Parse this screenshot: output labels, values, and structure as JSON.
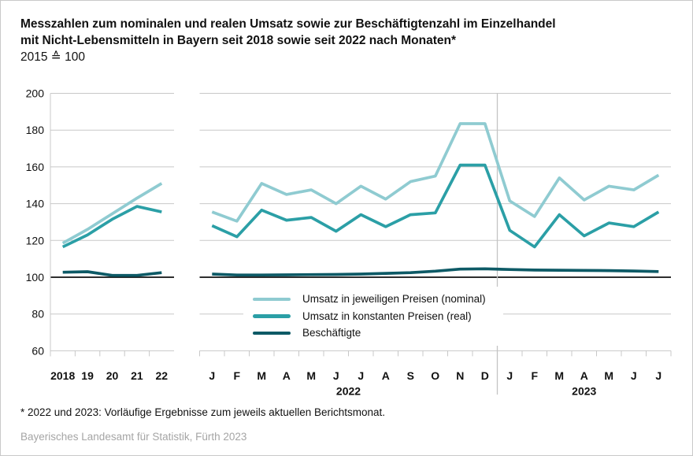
{
  "header": {
    "title_lines": [
      "Messzahlen zum nominalen und realen Umsatz sowie zur Beschäftigtenzahl im Einzelhandel",
      "mit Nicht-Lebensmitteln in Bayern seit 2018 sowie seit 2022 nach Monaten*"
    ],
    "subtitle": "2015 ≙ 100"
  },
  "chart_data": {
    "type": "line",
    "title": "Messzahlen zum nominalen und realen Umsatz sowie zur Beschäftigtenzahl im Einzelhandel mit Nicht-Lebensmitteln in Bayern seit 2018 sowie seit 2022 nach Monaten*",
    "unit": "2015 ≙ 100",
    "ylim": [
      60,
      200
    ],
    "yticks": [
      200,
      180,
      160,
      140,
      120,
      100,
      80,
      60
    ],
    "baseline": 100,
    "grid": true,
    "legend_position": "inside-bottom-center",
    "colors": {
      "nominal": "#8FCBD1",
      "real": "#2B9FA6",
      "beschaeftigte": "#0D5A66",
      "grid": "#C8C8C8",
      "baseline": "#111111",
      "separator": "#C4C4C4",
      "text": "#111111"
    },
    "panels": [
      {
        "id": "annual",
        "categories": [
          "2018",
          "19",
          "20",
          "21",
          "22"
        ],
        "series": [
          {
            "name": "Umsatz in jeweiligen Preisen (nominal)",
            "key": "nominal",
            "values": [
              118.5,
              126,
              134.5,
              143,
              151
            ]
          },
          {
            "name": "Umsatz in konstanten Preisen (real)",
            "key": "real",
            "values": [
              116.5,
              123,
              131.5,
              138.5,
              135.5
            ]
          },
          {
            "name": "Beschäftigte",
            "key": "beschaeftigte",
            "values": [
              102.7,
              103,
              101,
              101,
              102.5
            ]
          }
        ]
      },
      {
        "id": "monthly",
        "categories": [
          "J",
          "F",
          "M",
          "A",
          "M",
          "J",
          "J",
          "A",
          "S",
          "O",
          "N",
          "D",
          "J",
          "F",
          "M",
          "A",
          "M",
          "J",
          "J"
        ],
        "groups": [
          {
            "label": "2022",
            "from": 0,
            "to": 11
          },
          {
            "label": "2023",
            "from": 12,
            "to": 18
          }
        ],
        "series": [
          {
            "name": "Umsatz in jeweiligen Preisen (nominal)",
            "key": "nominal",
            "values": [
              135.5,
              130.5,
              151,
              145,
              147.5,
              140,
              149.5,
              142.5,
              152,
              155,
              183.5,
              183.5,
              141.5,
              133,
              154,
              142,
              149.5,
              147.5,
              155.5
            ]
          },
          {
            "name": "Umsatz in konstanten Preisen (real)",
            "key": "real",
            "values": [
              128,
              122,
              136.5,
              131,
              132.5,
              125,
              134,
              127.5,
              134,
              135,
              161,
              161,
              125.5,
              116.5,
              134,
              122.5,
              129.5,
              127.5,
              135.5
            ]
          },
          {
            "name": "Beschäftigte",
            "key": "beschaeftigte",
            "values": [
              101.7,
              101.2,
              101.2,
              101.3,
              101.4,
              101.5,
              101.7,
              102.1,
              102.5,
              103.3,
              104.4,
              104.6,
              104.2,
              103.9,
              103.8,
              103.7,
              103.6,
              103.4,
              103.1
            ]
          }
        ]
      }
    ],
    "legend": [
      {
        "label": "Umsatz in jeweiligen Preisen (nominal)",
        "key": "nominal"
      },
      {
        "label": "Umsatz in konstanten Preisen (real)",
        "key": "real"
      },
      {
        "label": "Beschäftigte",
        "key": "beschaeftigte"
      }
    ]
  },
  "footnote": "* 2022 und 2023: Vorläufige Ergebnisse zum jeweils aktuellen Berichtsmonat.",
  "source": "Bayerisches Landesamt für Statistik, Fürth 2023"
}
